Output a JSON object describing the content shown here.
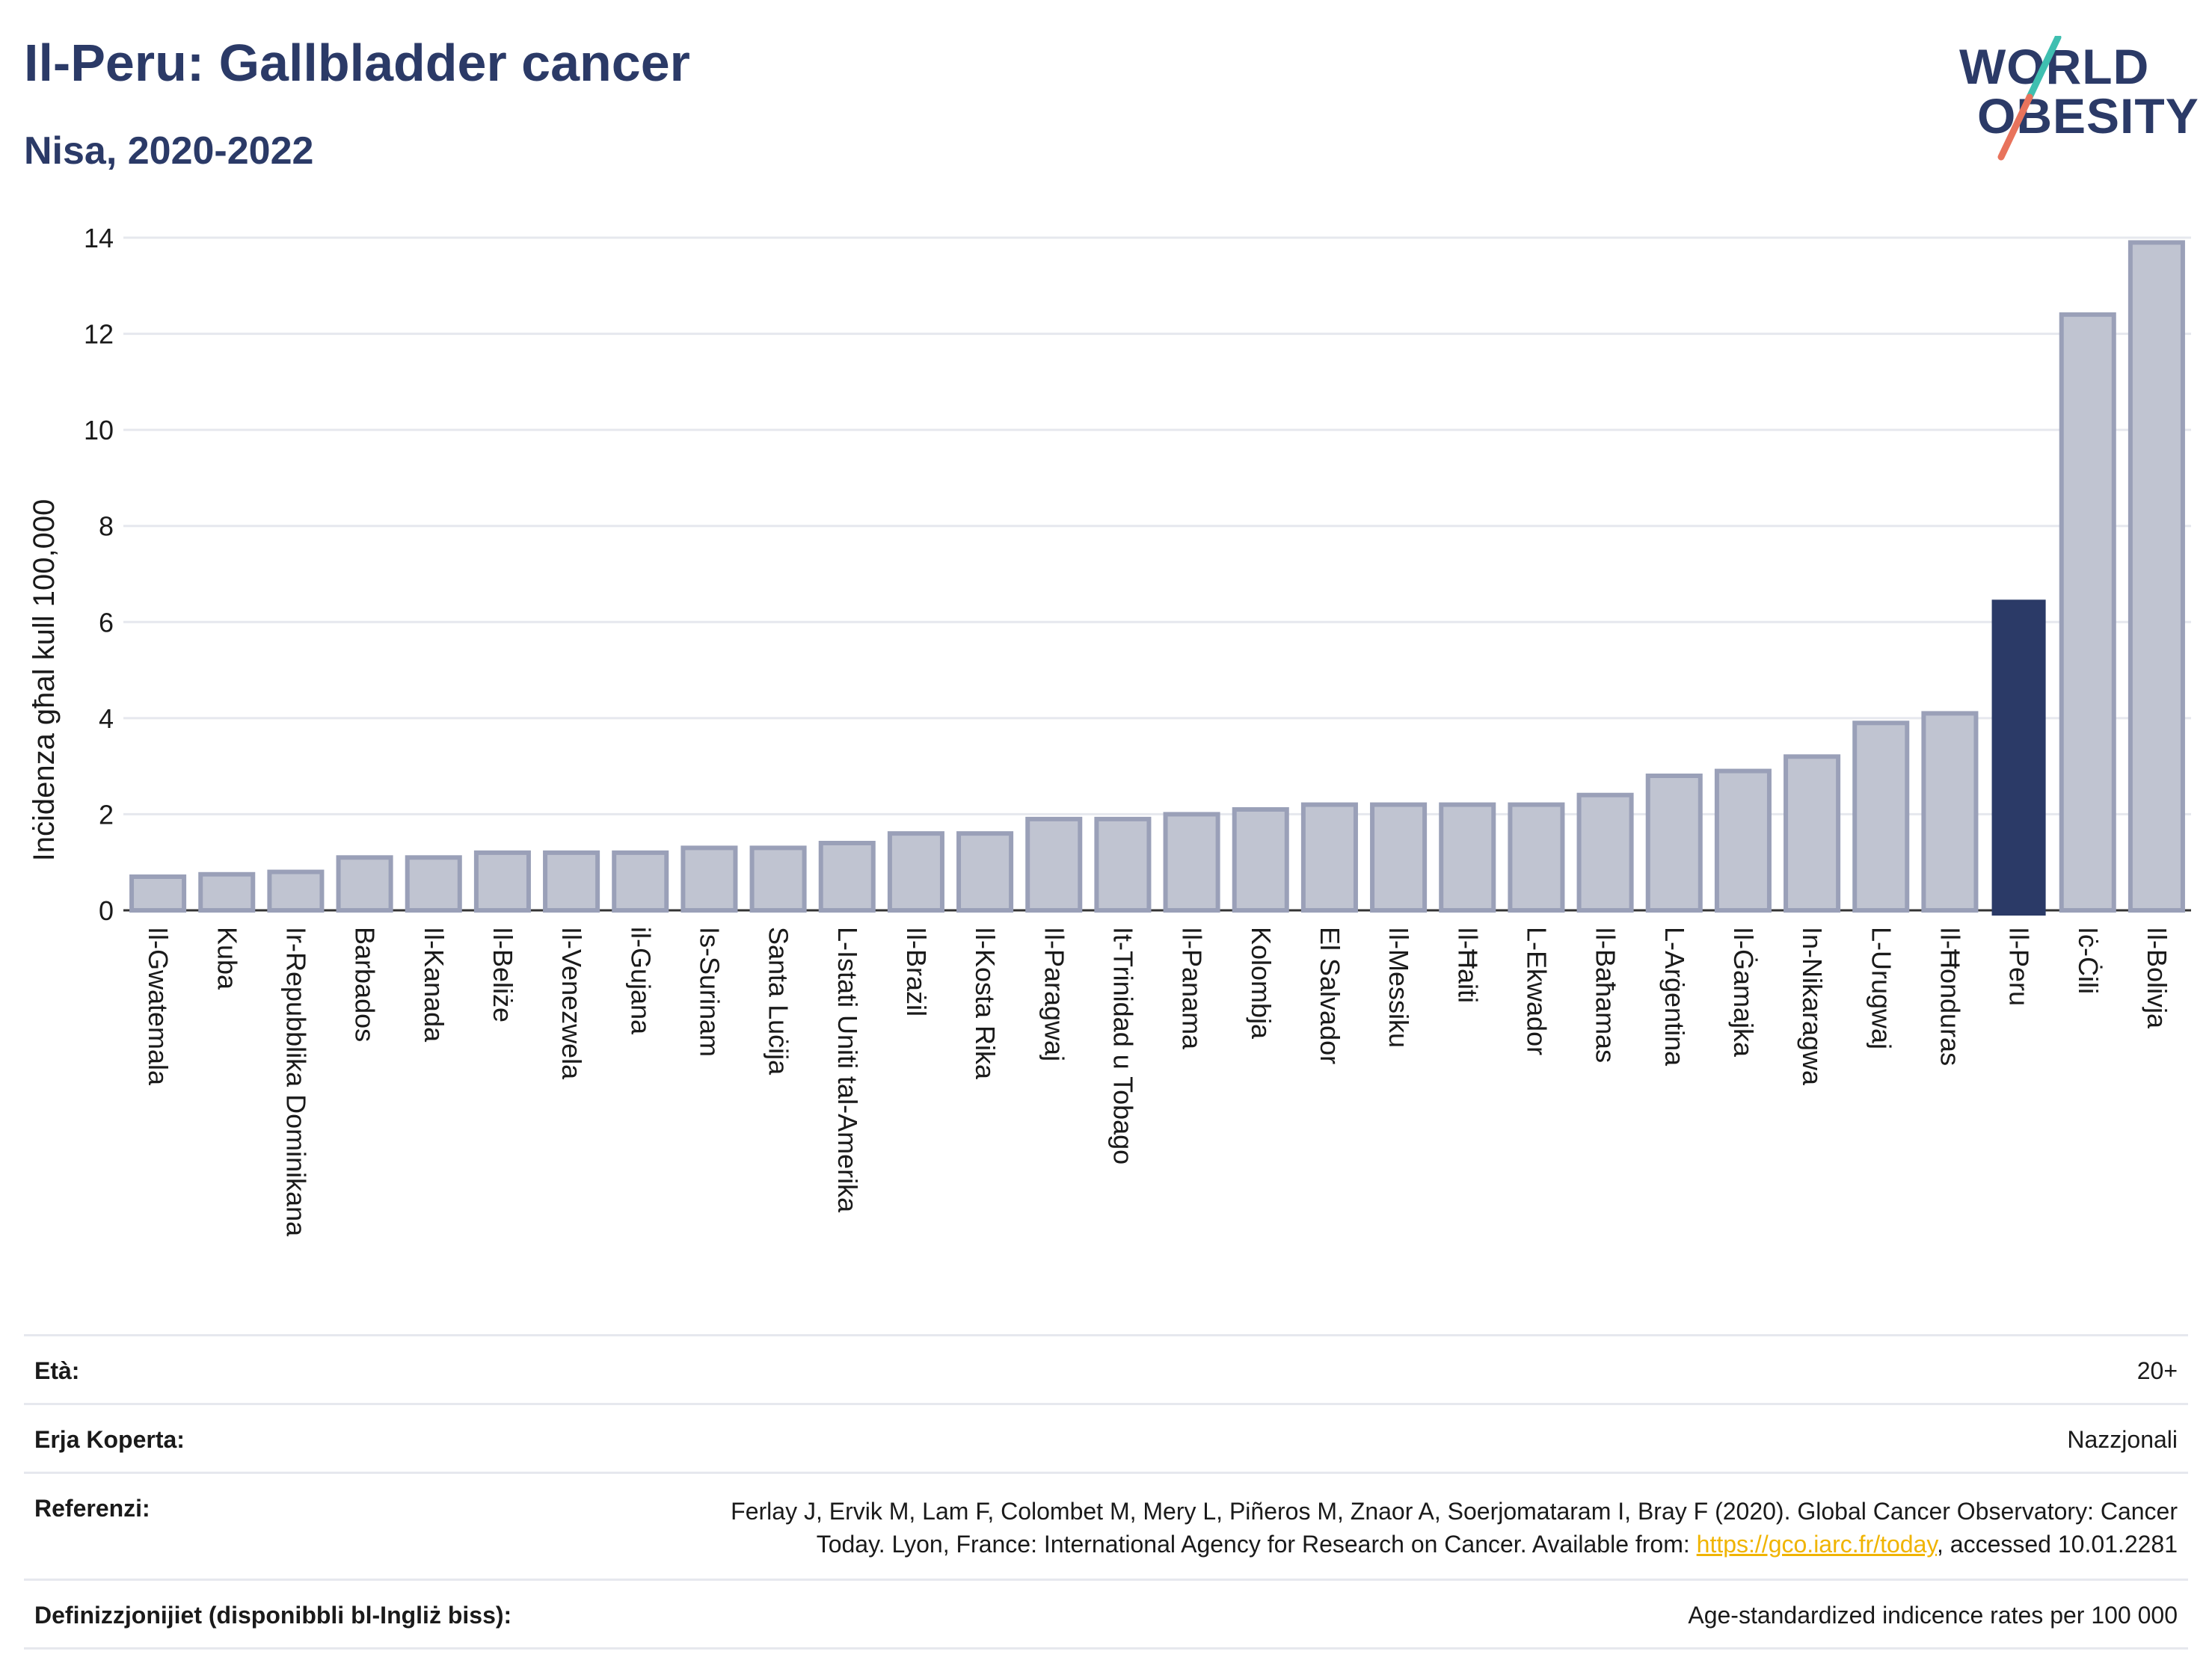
{
  "header": {
    "title": "Il-Peru: Gallbladder cancer",
    "subtitle": "Nisa, 2020-2022"
  },
  "logo": {
    "line1": "WORLD",
    "line2": "OBESITY"
  },
  "colors": {
    "title": "#2b3a67",
    "bar": "#c0c4d1",
    "bar_stroke": "#9aa0b8",
    "highlight": "#2b3a67",
    "grid": "#e6e8ee",
    "link": "#f0b400"
  },
  "chart_data": {
    "type": "bar",
    "ylabel": "Inċidenza għal kull 100,000",
    "ylim": [
      0,
      14
    ],
    "yticks": [
      0,
      2,
      4,
      6,
      8,
      10,
      12,
      14
    ],
    "grid": true,
    "highlight": "Il-Peru",
    "categories": [
      "Il-Gwatemala",
      "Kuba",
      "Ir-Repubblika Dominikana",
      "Barbados",
      "Il-Kanada",
      "Il-Beliże",
      "Il-Venezwela",
      "il-Gujana",
      "Is-Surinam",
      "Santa Luċija",
      "L-Istati Uniti tal-Amerika",
      "Il-Brażil",
      "Il-Kosta Rika",
      "Il-Paragwaj",
      "It-Trinidad u Tobago",
      "Il-Panama",
      "Kolombja",
      "El Salvador",
      "Il-Messiku",
      "Il-Ħaiti",
      "L-Ekwador",
      "Il-Baħamas",
      "L-Arġentina",
      "Il-Ġamajka",
      "In-Nikaragwa",
      "L-Urugwaj",
      "Il-Ħonduras",
      "Il-Peru",
      "Iċ-Ċili",
      "Il-Bolivja"
    ],
    "values": [
      0.7,
      0.75,
      0.8,
      1.1,
      1.1,
      1.2,
      1.2,
      1.2,
      1.3,
      1.3,
      1.4,
      1.6,
      1.6,
      1.9,
      1.9,
      2.0,
      2.1,
      2.2,
      2.2,
      2.2,
      2.2,
      2.4,
      2.8,
      2.9,
      3.2,
      3.9,
      4.1,
      6.45,
      12.4,
      13.9
    ]
  },
  "meta": {
    "age_label": "Età:",
    "age_value": "20+",
    "area_label": "Erja Koperta:",
    "area_value": "Nazzjonali",
    "ref_label": "Referenzi:",
    "ref_text_1": "Ferlay J, Ervik M, Lam F, Colombet M, Mery L, Piñeros M, Znaor A, Soerjomataram I, Bray F (2020). Global Cancer Observatory: Cancer Today. Lyon, France: International Agency for Research on Cancer. Available from: ",
    "ref_link": "https://gco.iarc.fr/today",
    "ref_text_2": ", accessed 10.01.2281",
    "def_label": "Definizzjonijiet (disponibbli bl-Ingliż biss):",
    "def_value": "Age-standardized indicence rates per 100 000"
  }
}
